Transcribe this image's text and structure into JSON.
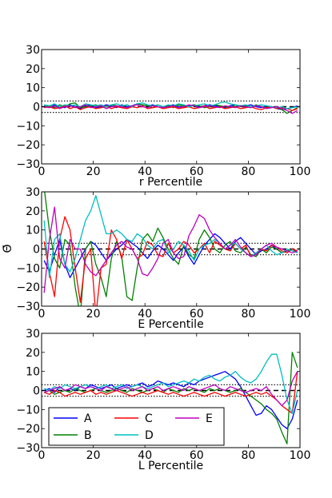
{
  "figure": {
    "ylabel": "Θ̄",
    "legend_position": "lower-left of bottom panel"
  },
  "chart_data": [
    {
      "type": "line",
      "title": "",
      "xlabel": "r Percentile",
      "ylabel": "",
      "xlim": [
        0,
        100
      ],
      "ylim": [
        -30,
        30
      ],
      "xticks": [
        0,
        20,
        40,
        60,
        80,
        100
      ],
      "yticks": [
        -30,
        -20,
        -10,
        0,
        10,
        20,
        30
      ],
      "grid": false,
      "reference_lines": {
        "dashed": [
          0
        ],
        "dotted": [
          3,
          -3
        ]
      },
      "x": [
        1,
        3,
        5,
        7,
        9,
        11,
        13,
        15,
        17,
        19,
        21,
        23,
        25,
        27,
        29,
        31,
        33,
        35,
        37,
        39,
        41,
        43,
        45,
        47,
        49,
        51,
        53,
        55,
        57,
        59,
        61,
        63,
        65,
        67,
        69,
        71,
        73,
        75,
        77,
        79,
        81,
        83,
        85,
        87,
        89,
        91,
        93,
        95,
        97,
        99
      ],
      "series": [
        {
          "name": "A",
          "color": "#0000ff",
          "values": [
            0.5,
            -0.5,
            1,
            0,
            -0.5,
            1,
            0,
            -1,
            0.5,
            1,
            -0.5,
            0,
            1,
            0.5,
            -0.5,
            1,
            0,
            0.5,
            1.5,
            1,
            0.5,
            1,
            0,
            -0.5,
            0.5,
            1,
            0,
            -0.5,
            0.5,
            1,
            0,
            0.5,
            1,
            0.5,
            0,
            -0.5,
            0.5,
            1,
            0,
            0.5,
            1,
            0,
            -0.5,
            0.5,
            0,
            -1,
            -1.5,
            -1,
            -0.5,
            0.5
          ]
        },
        {
          "name": "B",
          "color": "#008000",
          "values": [
            0,
            0.5,
            -0.5,
            1,
            0,
            1.5,
            2,
            -0.5,
            0,
            0.5,
            1,
            -0.5,
            0,
            1,
            0.5,
            -0.5,
            1,
            0,
            1.5,
            1,
            0.5,
            -0.5,
            1,
            0,
            0.5,
            -0.5,
            1,
            0.5,
            0,
            1,
            0.5,
            -0.5,
            0,
            1,
            0.5,
            0,
            -0.5,
            1,
            0,
            0.5,
            -0.5,
            1,
            0,
            -0.5,
            0,
            -0.5,
            -1.5,
            -3.5,
            -2,
            -0.5
          ]
        },
        {
          "name": "C",
          "color": "#ff0000",
          "values": [
            -0.5,
            0,
            -1,
            -0.5,
            0.5,
            -1,
            0,
            -1.5,
            -0.5,
            0,
            -1,
            -0.5,
            0.5,
            -1,
            0,
            -0.5,
            -1,
            0,
            -0.5,
            0.5,
            -1,
            -0.5,
            0,
            -1,
            -0.5,
            0,
            -1,
            -0.5,
            0,
            -1,
            -0.5,
            0.5,
            -1,
            -0.5,
            0,
            -1,
            -0.5,
            0,
            -1,
            -0.5,
            0,
            -1,
            -1.5,
            -0.5,
            0,
            -1,
            -0.5,
            -1,
            -2,
            -1
          ]
        },
        {
          "name": "D",
          "color": "#00bfbf",
          "values": [
            1,
            0.5,
            1.5,
            0,
            1,
            0.5,
            1,
            0,
            1.5,
            1,
            0.5,
            1,
            0,
            1,
            1.5,
            0.5,
            1,
            0,
            1.5,
            2,
            1,
            0.5,
            1,
            0,
            1,
            0.5,
            1.5,
            1,
            0,
            0.5,
            1,
            1.5,
            0.5,
            1,
            2,
            2.5,
            1.5,
            1,
            0.5,
            1,
            0,
            0.5,
            1,
            0.5,
            0,
            -0.5,
            0,
            -1,
            -0.5,
            0
          ]
        },
        {
          "name": "E",
          "color": "#bf00bf",
          "values": [
            0,
            -0.5,
            0.5,
            -1,
            0,
            0.5,
            -0.5,
            0,
            1,
            -0.5,
            0,
            0.5,
            -1,
            0,
            0.5,
            0,
            -0.5,
            0.5,
            1,
            0,
            -0.5,
            0.5,
            0,
            -0.5,
            0,
            0.5,
            -0.5,
            0,
            1,
            0.5,
            -0.5,
            0,
            0.5,
            0,
            -0.5,
            0.5,
            0,
            -0.5,
            0.5,
            0,
            -0.5,
            0.5,
            0,
            -1,
            -0.5,
            0,
            -1,
            -2,
            -3.5,
            -2
          ]
        }
      ]
    },
    {
      "type": "line",
      "title": "",
      "xlabel": "E Percentile",
      "ylabel": "Θ̄",
      "xlim": [
        0,
        100
      ],
      "ylim": [
        -30,
        30
      ],
      "xticks": [
        0,
        20,
        40,
        60,
        80,
        100
      ],
      "yticks": [
        -30,
        -20,
        -10,
        0,
        10,
        20,
        30
      ],
      "grid": false,
      "reference_lines": {
        "dashed": [
          0
        ],
        "dotted": [
          3,
          -3
        ]
      },
      "x": [
        1,
        3,
        5,
        7,
        9,
        11,
        13,
        15,
        17,
        19,
        21,
        23,
        25,
        27,
        29,
        31,
        33,
        35,
        37,
        39,
        41,
        43,
        45,
        47,
        49,
        51,
        53,
        55,
        57,
        59,
        61,
        63,
        65,
        67,
        69,
        71,
        73,
        75,
        77,
        79,
        81,
        83,
        85,
        87,
        89,
        91,
        93,
        95,
        97,
        99
      ],
      "series": [
        {
          "name": "A",
          "color": "#0000ff",
          "values": [
            -6,
            -12,
            -3,
            5,
            -8,
            -15,
            -10,
            -5,
            0,
            4,
            2,
            -2,
            -6,
            -3,
            0,
            2,
            5,
            3,
            1,
            -2,
            -5,
            -1,
            2,
            0,
            -3,
            -6,
            -2,
            1,
            -4,
            -8,
            -3,
            2,
            5,
            8,
            6,
            3,
            0,
            4,
            6,
            3,
            0,
            -3,
            -1,
            0,
            2,
            0,
            -2,
            -1,
            0,
            -1
          ]
        },
        {
          "name": "B",
          "color": "#008000",
          "values": [
            32,
            10,
            -5,
            -10,
            5,
            2,
            -20,
            -35,
            0,
            4,
            -8,
            -15,
            -25,
            -5,
            4,
            -4,
            -25,
            -27,
            -10,
            5,
            8,
            4,
            11,
            6,
            0,
            -5,
            -8,
            2,
            -3,
            -5,
            5,
            10,
            6,
            0,
            -2,
            2,
            4,
            -1,
            -2,
            1,
            -3,
            -4,
            0,
            -2,
            1,
            0,
            -2,
            -1,
            0,
            -2
          ]
        },
        {
          "name": "C",
          "color": "#ff0000",
          "values": [
            4,
            -12,
            -25,
            5,
            17,
            10,
            -10,
            -28,
            -5,
            0,
            -35,
            -10,
            -8,
            10,
            5,
            -5,
            5,
            0,
            -5,
            -3,
            4,
            2,
            -3,
            -4,
            3,
            -2,
            0,
            4,
            2,
            -2,
            0,
            3,
            -2,
            4,
            2,
            0,
            -1,
            3,
            0,
            2,
            -4,
            -2,
            0,
            -1,
            2,
            1,
            -1,
            -2,
            0,
            -1
          ]
        },
        {
          "name": "D",
          "color": "#00bfbf",
          "values": [
            15,
            -15,
            5,
            8,
            -8,
            -12,
            -5,
            5,
            15,
            20,
            28,
            18,
            8,
            8,
            10,
            8,
            5,
            4,
            8,
            6,
            2,
            0,
            4,
            5,
            -2,
            0,
            4,
            2,
            -1,
            -6,
            0,
            2,
            3,
            5,
            3,
            0,
            2,
            3,
            0,
            -2,
            -4,
            -2,
            0,
            2,
            -1,
            -3,
            -2,
            0,
            -1,
            -2
          ]
        },
        {
          "name": "E",
          "color": "#bf00bf",
          "values": [
            -23,
            5,
            22,
            -5,
            -10,
            5,
            0,
            0,
            -8,
            -12,
            -14,
            -10,
            -6,
            -2,
            2,
            4,
            1,
            0,
            -5,
            -13,
            -14,
            -10,
            -5,
            3,
            5,
            -2,
            -5,
            -4,
            7,
            12,
            18,
            16,
            10,
            6,
            3,
            0,
            2,
            5,
            1,
            -2,
            -4,
            -3,
            0,
            2,
            3,
            1,
            0,
            -1,
            -2,
            -1
          ]
        }
      ]
    },
    {
      "type": "line",
      "title": "",
      "xlabel": "L Percentile",
      "ylabel": "",
      "xlim": [
        0,
        100
      ],
      "ylim": [
        -30,
        30
      ],
      "xticks": [
        0,
        20,
        40,
        60,
        80,
        100
      ],
      "yticks": [
        -30,
        -20,
        -10,
        0,
        10,
        20,
        30
      ],
      "grid": false,
      "reference_lines": {
        "dashed": [
          0
        ],
        "dotted": [
          3,
          -3
        ]
      },
      "legend": {
        "position": "lower-left",
        "ncol": 3,
        "entries": [
          "A",
          "B",
          "C",
          "D",
          "E"
        ]
      },
      "x": [
        1,
        3,
        5,
        7,
        9,
        11,
        13,
        15,
        17,
        19,
        21,
        23,
        25,
        27,
        29,
        31,
        33,
        35,
        37,
        39,
        41,
        43,
        45,
        47,
        49,
        51,
        53,
        55,
        57,
        59,
        61,
        63,
        65,
        67,
        69,
        71,
        73,
        75,
        77,
        79,
        81,
        83,
        85,
        87,
        89,
        91,
        93,
        95,
        97,
        99
      ],
      "series": [
        {
          "name": "A",
          "color": "#0000ff",
          "values": [
            0,
            1,
            -1,
            2,
            0,
            1,
            0,
            2,
            1,
            3,
            2,
            1,
            2,
            3,
            1,
            2,
            3,
            2,
            3,
            4,
            2,
            3,
            5,
            4,
            3,
            4,
            3,
            2,
            4,
            3,
            5,
            6,
            7,
            8,
            9,
            10,
            8,
            6,
            2,
            -3,
            -8,
            -13,
            -12,
            -8,
            -10,
            -14,
            -18,
            -20,
            -15,
            -5
          ]
        },
        {
          "name": "B",
          "color": "#008000",
          "values": [
            -1,
            0,
            -2,
            -1,
            0,
            -1,
            1,
            0,
            -1,
            0,
            1,
            0,
            -1,
            0,
            1,
            0,
            -1,
            1,
            0,
            -1,
            0,
            1,
            0,
            -1,
            1,
            0,
            -1,
            1,
            0,
            1,
            0,
            -1,
            1,
            0,
            1,
            0,
            -1,
            0,
            1,
            -1,
            -3,
            -5,
            -7,
            -10,
            -12,
            -15,
            -22,
            -28,
            20,
            12
          ]
        },
        {
          "name": "C",
          "color": "#ff0000",
          "values": [
            -1,
            -2,
            0,
            -1,
            -3,
            -2,
            -1,
            -2,
            -1,
            0,
            -2,
            -1,
            -2,
            -1,
            0,
            -1,
            -2,
            -3,
            -2,
            -1,
            -2,
            -1,
            0,
            -1,
            -2,
            -1,
            -2,
            -3,
            -2,
            -1,
            -2,
            -3,
            -2,
            -1,
            -2,
            -3,
            -2,
            -1,
            -2,
            -3,
            -2,
            -1,
            -2,
            -1,
            -3,
            -5,
            -8,
            -10,
            -12,
            10
          ]
        },
        {
          "name": "D",
          "color": "#00bfbf",
          "values": [
            1,
            0,
            2,
            1,
            3,
            2,
            1,
            2,
            3,
            2,
            1,
            2,
            3,
            1,
            2,
            3,
            1,
            2,
            3,
            2,
            1,
            2,
            3,
            4,
            2,
            3,
            4,
            5,
            4,
            6,
            5,
            7,
            8,
            6,
            5,
            7,
            8,
            10,
            7,
            5,
            4,
            6,
            10,
            15,
            19,
            19,
            8,
            -5,
            -12,
            0
          ]
        },
        {
          "name": "E",
          "color": "#bf00bf",
          "values": [
            -1,
            0,
            1,
            2,
            0,
            1,
            3,
            2,
            1,
            2,
            1,
            0,
            2,
            1,
            0,
            1,
            2,
            0,
            1,
            2,
            0,
            1,
            2,
            0,
            1,
            2,
            1,
            0,
            2,
            1,
            0,
            1,
            2,
            3,
            1,
            0,
            2,
            1,
            0,
            -1,
            0,
            1,
            0,
            2,
            -2,
            -5,
            -8,
            -5,
            5,
            10
          ]
        }
      ]
    }
  ]
}
